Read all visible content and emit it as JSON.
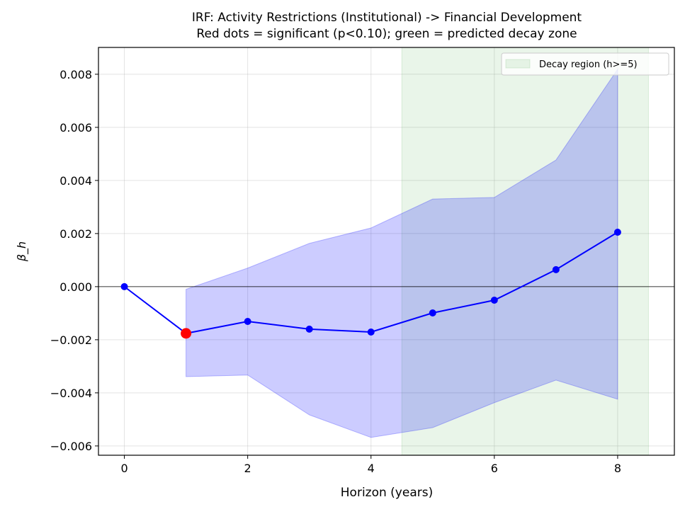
{
  "chart_data": {
    "type": "line",
    "title": "IRF: Activity Restrictions (Institutional) -> Financial Development",
    "subtitle": "Red dots = significant (p<0.10); green = predicted decay zone",
    "xlabel": "Horizon (years)",
    "ylabel": "β_h",
    "xlim": [
      -0.42,
      8.92
    ],
    "ylim": [
      -0.00635,
      0.00901
    ],
    "x_ticks": [
      0,
      2,
      4,
      6,
      8
    ],
    "x_tick_labels": [
      "0",
      "2",
      "4",
      "6",
      "8"
    ],
    "y_ticks": [
      -0.006,
      -0.004,
      -0.002,
      0.0,
      0.002,
      0.004,
      0.006,
      0.008
    ],
    "y_tick_labels": [
      "−0.006",
      "−0.004",
      "−0.002",
      "0.000",
      "0.002",
      "0.004",
      "0.006",
      "0.008"
    ],
    "grid": true,
    "x": [
      0,
      1,
      2,
      3,
      4,
      5,
      6,
      7,
      8
    ],
    "beta": [
      0.0,
      -0.00176,
      -0.00131,
      -0.0016,
      -0.00171,
      -0.00099,
      -0.00051,
      0.00064,
      0.00205
    ],
    "significant": [
      false,
      true,
      false,
      false,
      false,
      false,
      false,
      false,
      false
    ],
    "band_x": [
      1,
      2,
      3,
      4,
      5,
      6,
      7,
      8
    ],
    "band_upper": [
      -0.0001,
      0.0007,
      0.00163,
      0.00221,
      0.0033,
      0.00336,
      0.00477,
      0.00819
    ],
    "band_lower": [
      -0.00339,
      -0.00333,
      -0.00483,
      -0.00568,
      -0.00531,
      -0.00437,
      -0.00352,
      -0.00424
    ],
    "decay_region": {
      "x_start": 4.5,
      "x_end": 8.5,
      "label": "Decay region (h>=5)"
    },
    "zero_line": 0,
    "legend_position": "top-right",
    "colors": {
      "line": "#0000ff",
      "band": "#8080ff",
      "significant": "#ff0000",
      "decay": "#2ca02c"
    }
  }
}
